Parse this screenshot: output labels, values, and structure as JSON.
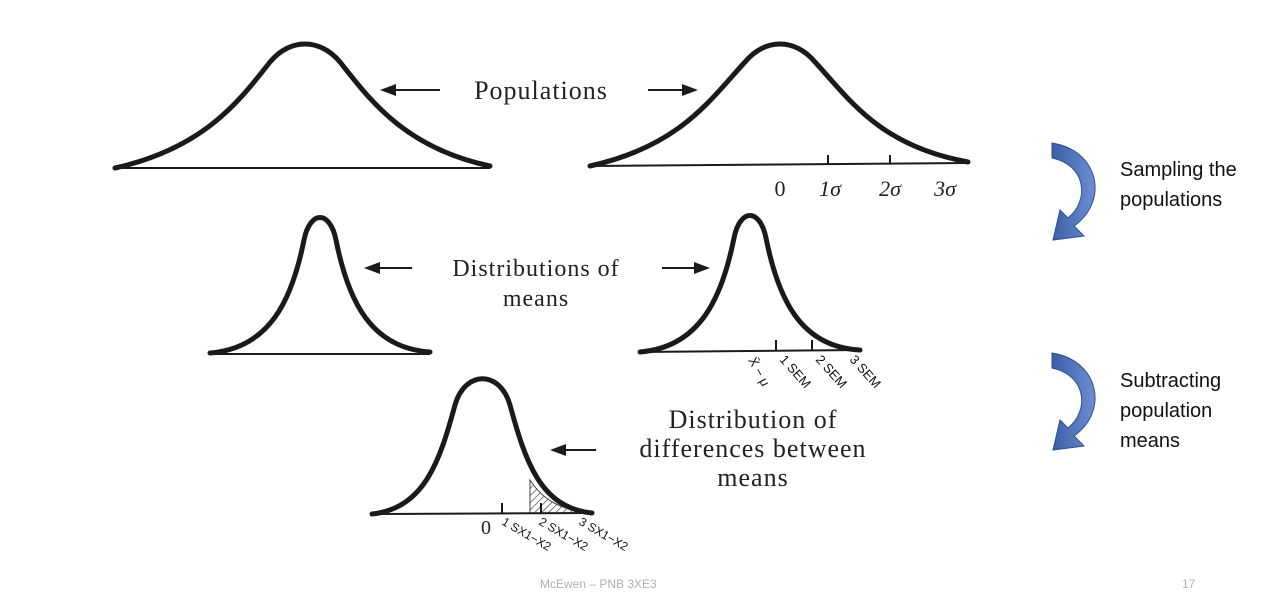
{
  "labels": {
    "populations": "Populations",
    "distributions_of_means_line1": "Distributions of",
    "distributions_of_means_line2": "means",
    "distribution_of_differences_line1": "Distribution of",
    "distribution_of_differences_line2": "differences between",
    "distribution_of_differences_line3": "means"
  },
  "population_axis": {
    "zero": "0",
    "ticks": [
      "1σ",
      "2σ",
      "3σ"
    ]
  },
  "means_axis": {
    "origin": "X̄ − μ",
    "ticks": [
      "1 SEM",
      "2 SEM",
      "3 SEM"
    ]
  },
  "differences_axis": {
    "zero": "0",
    "ticks": [
      "1 SX1−X2",
      "2 SX1−X2",
      "3 SX1−X2"
    ]
  },
  "steps": [
    {
      "line1": "Sampling the",
      "line2": "populations"
    },
    {
      "line1": "Subtracting",
      "line2": "population",
      "line3": "means"
    }
  ],
  "footer": {
    "author": "McEwen – PNB 3XE3",
    "page_number": "17"
  },
  "colors": {
    "step_arrow": "#4a6fb5",
    "curve": "#1a1a1a",
    "footer_text": "#b0b0b0"
  }
}
